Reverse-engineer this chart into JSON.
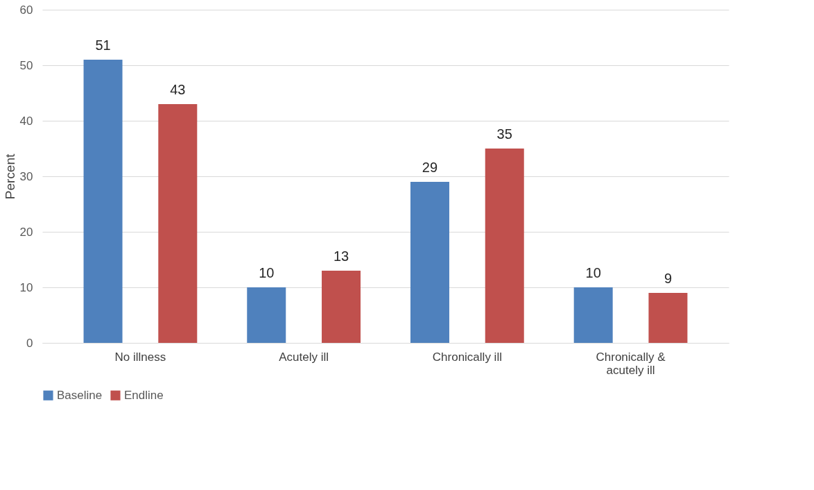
{
  "chart_data": {
    "type": "bar",
    "ylabel": "Percent",
    "categories": [
      "No illness",
      "Acutely ill",
      "Chronically ill",
      "Chronically & acutely ill"
    ],
    "series": [
      {
        "name": "Baseline",
        "color": "#4f81bd",
        "values": [
          51,
          10,
          29,
          10
        ]
      },
      {
        "name": "Endline",
        "color": "#c0504d",
        "values": [
          43,
          13,
          35,
          9
        ]
      }
    ],
    "ylim": [
      0,
      60
    ],
    "yticks": [
      0,
      10,
      20,
      30,
      40,
      50,
      60
    ],
    "grid": "y",
    "legend": "bottom",
    "data_labels": true
  }
}
